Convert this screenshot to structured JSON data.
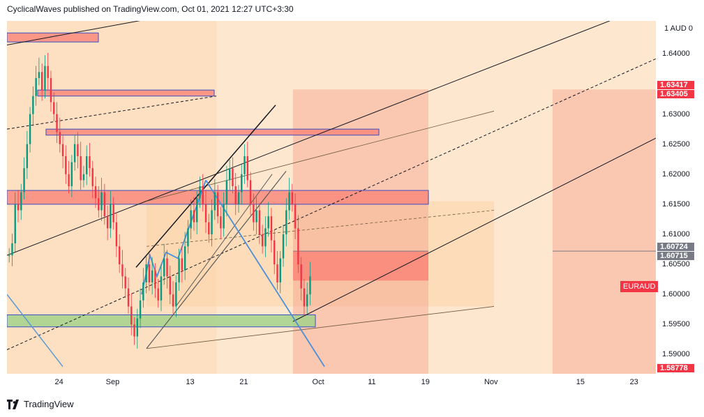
{
  "header": {
    "publisher_line": "CyclicalWaves published on TradingView.com, Oct 01, 2021 12:27 UTC+3:30"
  },
  "footer": {
    "brand": "TradingView",
    "logo_icon": "tradingview-logo-icon"
  },
  "chart_data": {
    "type": "candlestick",
    "symbol": "EURAUD",
    "unit_label": "1 AUD 0",
    "ylim": [
      1.5868,
      1.6455
    ],
    "y_ticks": [
      "1.64000",
      "1.63500",
      "1.63000",
      "1.62500",
      "1.62000",
      "1.61500",
      "1.61000",
      "1.60500",
      "1.60000",
      "1.59500",
      "1.59000"
    ],
    "x_ticks": [
      {
        "label": "24",
        "index": 17
      },
      {
        "label": "Sep",
        "index": 35
      },
      {
        "label": "13",
        "index": 61
      },
      {
        "label": "21",
        "index": 79
      },
      {
        "label": "Oct",
        "index": 104
      },
      {
        "label": "11",
        "index": 122
      },
      {
        "label": "19",
        "index": 140
      },
      {
        "label": "Nov",
        "index": 162
      },
      {
        "label": "15",
        "index": 192
      },
      {
        "label": "23",
        "index": 210
      }
    ],
    "price_labels": [
      {
        "value": "1.63417",
        "color": "#f23645"
      },
      {
        "value": "1.63405",
        "color": "#f23645"
      },
      {
        "value": "1.60724",
        "color": "#787b86"
      },
      {
        "value": "1.60715",
        "color": "#787b86"
      },
      {
        "value": "1.58778",
        "color": "#f23645"
      }
    ],
    "candle_color_up": "#089981",
    "candle_color_down": "#f23645",
    "zone_colors": {
      "peach": "#fbd4a8",
      "red_zone": "#f6a08c",
      "red_box": "#f98a7c",
      "green_box": "#a5d28b",
      "box_border": "#3a4ec4"
    },
    "closes": [
      1.6065,
      1.6085,
      1.615,
      1.614,
      1.617,
      1.621,
      1.625,
      1.63,
      1.633,
      1.636,
      1.637,
      1.634,
      1.638,
      1.636,
      1.632,
      1.63,
      1.627,
      1.625,
      1.623,
      1.62,
      1.618,
      1.622,
      1.625,
      1.623,
      1.619,
      1.62,
      1.623,
      1.621,
      1.618,
      1.616,
      1.614,
      1.617,
      1.613,
      1.611,
      1.615,
      1.612,
      1.608,
      1.605,
      1.603,
      1.601,
      1.598,
      1.595,
      1.593,
      1.596,
      1.599,
      1.602,
      1.605,
      1.602,
      1.604,
      1.601,
      1.599,
      1.603,
      1.606,
      1.603,
      1.6,
      1.598,
      1.602,
      1.606,
      1.604,
      1.608,
      1.611,
      1.614,
      1.612,
      1.616,
      1.618,
      1.615,
      1.612,
      1.61,
      1.614,
      1.617,
      1.613,
      1.611,
      1.615,
      1.619,
      1.621,
      1.618,
      1.615,
      1.617,
      1.62,
      1.623,
      1.619,
      1.615,
      1.612,
      1.614,
      1.61,
      1.608,
      1.611,
      1.613,
      1.609,
      1.605,
      1.602,
      1.606,
      1.61,
      1.614,
      1.617,
      1.615,
      1.611,
      1.605,
      1.601,
      1.598,
      1.6,
      1.603
    ]
  }
}
